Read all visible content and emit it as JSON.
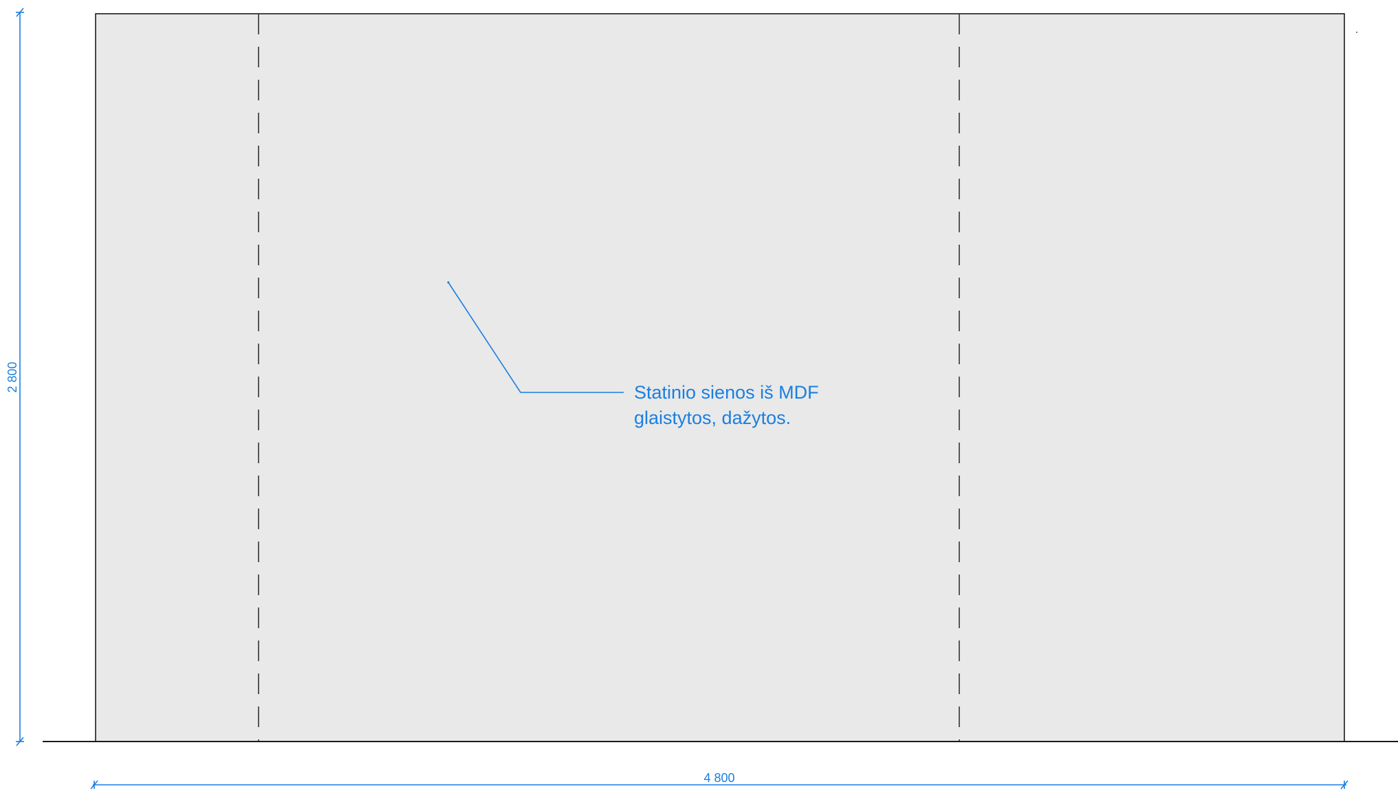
{
  "elevation": {
    "note": {
      "line1": "Statinio sienos iš MDF",
      "line2": "glaistytos, dažytos."
    },
    "dimensions": {
      "height_label": "2 800",
      "width_label": "4 800"
    },
    "colors": {
      "wall_fill": "#e9e9e9",
      "outline": "#1a1a1a",
      "hidden_line": "#333333",
      "annotation": "#1a7fe0"
    }
  }
}
